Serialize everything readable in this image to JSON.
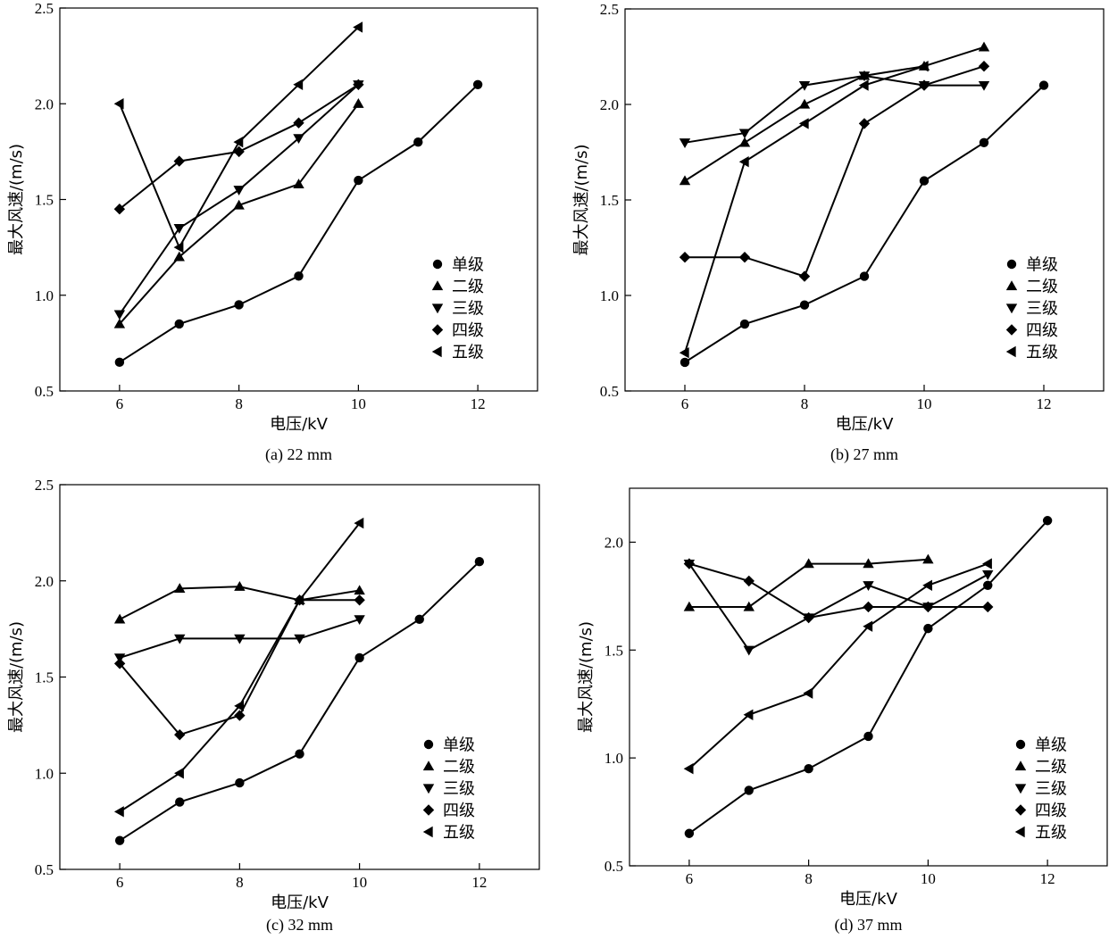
{
  "colors": {
    "ink": "#000000",
    "background": "#ffffff"
  },
  "legend_markers": [
    "circle",
    "triangle-up",
    "triangle-down",
    "diamond",
    "triangle-left"
  ],
  "chart_data": [
    {
      "type": "line",
      "caption": "(a) 22 mm",
      "xlabel": "电压/kV",
      "ylabel": "最大风速/(m/s)",
      "xlim": [
        5,
        13
      ],
      "ylim": [
        0.5,
        2.5
      ],
      "xticks": [
        6,
        8,
        10,
        12
      ],
      "yticks": [
        0.5,
        1.0,
        1.5,
        2.0,
        2.5
      ],
      "xtick_labels": [
        "6",
        "8",
        "10",
        "12"
      ],
      "ytick_labels": [
        "0.5",
        "1.0",
        "1.5",
        "2.0",
        "2.5"
      ],
      "legend_position": "lower-right",
      "series": [
        {
          "name": "单级",
          "marker": "circle",
          "x": [
            6,
            7,
            8,
            9,
            10,
            11,
            12
          ],
          "y": [
            0.65,
            0.85,
            0.95,
            1.1,
            1.6,
            1.8,
            2.1
          ]
        },
        {
          "name": "二级",
          "marker": "triangle-up",
          "x": [
            6,
            7,
            8,
            9,
            10
          ],
          "y": [
            0.85,
            1.2,
            1.47,
            1.58,
            2.0
          ]
        },
        {
          "name": "三级",
          "marker": "triangle-down",
          "x": [
            6,
            7,
            8,
            9,
            10
          ],
          "y": [
            0.9,
            1.35,
            1.55,
            1.82,
            2.1
          ]
        },
        {
          "name": "四级",
          "marker": "diamond",
          "x": [
            6,
            7,
            8,
            9,
            10
          ],
          "y": [
            1.45,
            1.7,
            1.75,
            1.9,
            2.1
          ]
        },
        {
          "name": "五级",
          "marker": "triangle-left",
          "x": [
            6,
            7,
            8,
            9,
            10
          ],
          "y": [
            2.0,
            1.25,
            1.8,
            2.1,
            2.4
          ]
        }
      ]
    },
    {
      "type": "line",
      "caption": "(b) 27 mm",
      "xlabel": "电压/kV",
      "ylabel": "最大风速/(m/s)",
      "xlim": [
        5,
        13
      ],
      "ylim": [
        0.5,
        2.5
      ],
      "xticks": [
        6,
        8,
        10,
        12
      ],
      "yticks": [
        0.5,
        1.0,
        1.5,
        2.0,
        2.5
      ],
      "xtick_labels": [
        "6",
        "8",
        "10",
        "12"
      ],
      "ytick_labels": [
        "0.5",
        "1.0",
        "1.5",
        "2.0",
        "2.5"
      ],
      "legend_position": "lower-right",
      "series": [
        {
          "name": "单级",
          "marker": "circle",
          "x": [
            6,
            7,
            8,
            9,
            10,
            11,
            12
          ],
          "y": [
            0.65,
            0.85,
            0.95,
            1.1,
            1.6,
            1.8,
            2.1
          ]
        },
        {
          "name": "二级",
          "marker": "triangle-up",
          "x": [
            6,
            7,
            8,
            9,
            10,
            11
          ],
          "y": [
            1.6,
            1.8,
            2.0,
            2.15,
            2.2,
            2.3
          ]
        },
        {
          "name": "三级",
          "marker": "triangle-down",
          "x": [
            6,
            7,
            8,
            9,
            10,
            11
          ],
          "y": [
            1.8,
            1.85,
            2.1,
            2.15,
            2.1,
            2.1
          ]
        },
        {
          "name": "四级",
          "marker": "diamond",
          "x": [
            6,
            7,
            8,
            9,
            10,
            11
          ],
          "y": [
            1.2,
            1.2,
            1.1,
            1.9,
            2.1,
            2.2
          ]
        },
        {
          "name": "五级",
          "marker": "triangle-left",
          "x": [
            6,
            7,
            8,
            9,
            10
          ],
          "y": [
            0.7,
            1.7,
            1.9,
            2.1,
            2.2
          ]
        }
      ]
    },
    {
      "type": "line",
      "caption": "(c) 32 mm",
      "xlabel": "电压/kV",
      "ylabel": "最大风速/(m/s)",
      "xlim": [
        5,
        13
      ],
      "ylim": [
        0.5,
        2.5
      ],
      "xticks": [
        6,
        8,
        10,
        12
      ],
      "yticks": [
        0.5,
        1.0,
        1.5,
        2.0,
        2.5
      ],
      "xtick_labels": [
        "6",
        "8",
        "10",
        "12"
      ],
      "ytick_labels": [
        "0.5",
        "1.0",
        "1.5",
        "2.0",
        "2.5"
      ],
      "legend_position": "lower-right",
      "series": [
        {
          "name": "单级",
          "marker": "circle",
          "x": [
            6,
            7,
            8,
            9,
            10,
            11,
            12
          ],
          "y": [
            0.65,
            0.85,
            0.95,
            1.1,
            1.6,
            1.8,
            2.1
          ]
        },
        {
          "name": "二级",
          "marker": "triangle-up",
          "x": [
            6,
            7,
            8,
            9,
            10
          ],
          "y": [
            1.8,
            1.96,
            1.97,
            1.9,
            1.95
          ]
        },
        {
          "name": "三级",
          "marker": "triangle-down",
          "x": [
            6,
            7,
            8,
            9,
            10
          ],
          "y": [
            1.6,
            1.7,
            1.7,
            1.7,
            1.8
          ]
        },
        {
          "name": "四级",
          "marker": "diamond",
          "x": [
            6,
            7,
            8,
            9,
            10
          ],
          "y": [
            1.57,
            1.2,
            1.3,
            1.9,
            1.9
          ]
        },
        {
          "name": "五级",
          "marker": "triangle-left",
          "x": [
            6,
            7,
            8,
            9,
            10
          ],
          "y": [
            0.8,
            1.0,
            1.35,
            1.9,
            2.3
          ]
        }
      ]
    },
    {
      "type": "line",
      "caption": "(d) 37 mm",
      "xlabel": "电压/kV",
      "ylabel": "最大风速/(m/s)",
      "xlim": [
        5,
        13
      ],
      "ylim": [
        0.5,
        2.25
      ],
      "xticks": [
        6,
        8,
        10,
        12
      ],
      "yticks": [
        0.5,
        1.0,
        1.5,
        2.0
      ],
      "xtick_labels": [
        "6",
        "8",
        "10",
        "12"
      ],
      "ytick_labels": [
        "0.5",
        "1.0",
        "1.5",
        "2.0"
      ],
      "legend_position": "lower-right",
      "series": [
        {
          "name": "单级",
          "marker": "circle",
          "x": [
            6,
            7,
            8,
            9,
            10,
            11,
            12
          ],
          "y": [
            0.65,
            0.85,
            0.95,
            1.1,
            1.6,
            1.8,
            2.1
          ]
        },
        {
          "name": "二级",
          "marker": "triangle-up",
          "x": [
            6,
            7,
            8,
            9,
            10
          ],
          "y": [
            1.7,
            1.7,
            1.9,
            1.9,
            1.92
          ]
        },
        {
          "name": "三级",
          "marker": "triangle-down",
          "x": [
            6,
            7,
            8,
            9,
            10,
            11
          ],
          "y": [
            1.9,
            1.5,
            1.65,
            1.8,
            1.7,
            1.85
          ]
        },
        {
          "name": "四级",
          "marker": "diamond",
          "x": [
            6,
            7,
            8,
            9,
            10,
            11
          ],
          "y": [
            1.9,
            1.82,
            1.65,
            1.7,
            1.7,
            1.7
          ]
        },
        {
          "name": "五级",
          "marker": "triangle-left",
          "x": [
            6,
            7,
            8,
            9,
            10,
            11
          ],
          "y": [
            0.95,
            1.2,
            1.3,
            1.61,
            1.8,
            1.9
          ]
        }
      ]
    }
  ]
}
